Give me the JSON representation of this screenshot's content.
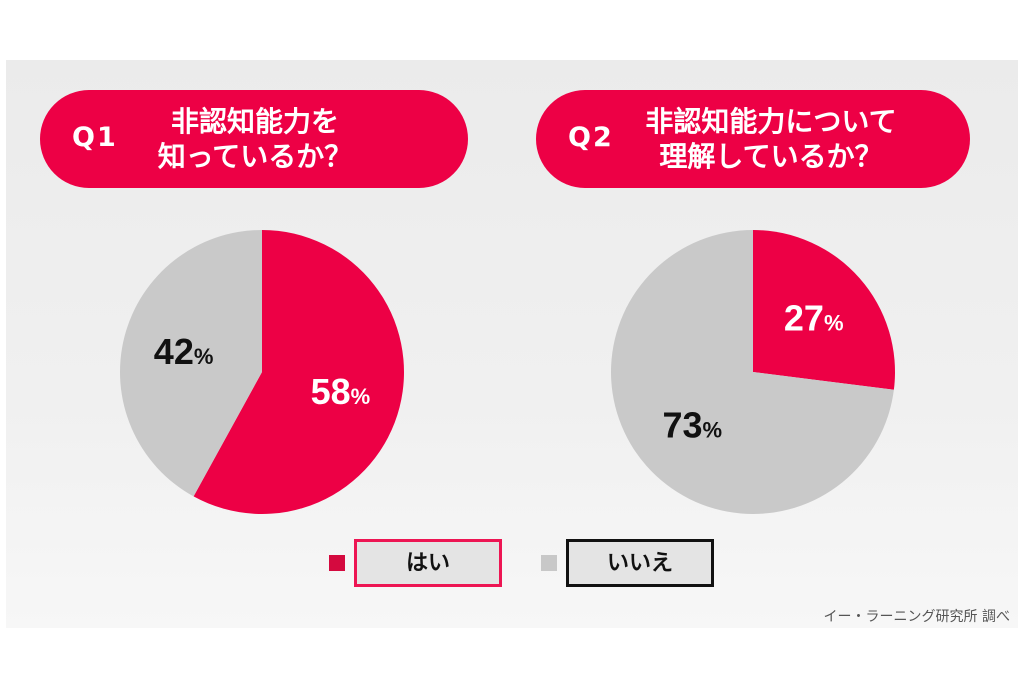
{
  "q1": {
    "number": "Q1",
    "text": "非認知能力を\n知っているか？"
  },
  "q2": {
    "number": "Q2",
    "text": "非認知能力について\n理解しているか？"
  },
  "legend": {
    "yes": "はい",
    "no": "いいえ"
  },
  "source": "イー・ラーニング研究所 調べ",
  "colors": {
    "yes": "#ed0045",
    "no": "#c9c9c9",
    "yes_swatch": "#d40a3f"
  },
  "chart_data": [
    {
      "type": "pie",
      "title": "非認知能力を知っているか？",
      "labels": [
        "はい",
        "いいえ"
      ],
      "values": [
        58,
        42
      ],
      "value_labels": [
        "58",
        "42"
      ],
      "unit": "%"
    },
    {
      "type": "pie",
      "title": "非認知能力について理解しているか？",
      "labels": [
        "はい",
        "いいえ"
      ],
      "values": [
        27,
        73
      ],
      "value_labels": [
        "27",
        "73"
      ],
      "unit": "%"
    }
  ]
}
